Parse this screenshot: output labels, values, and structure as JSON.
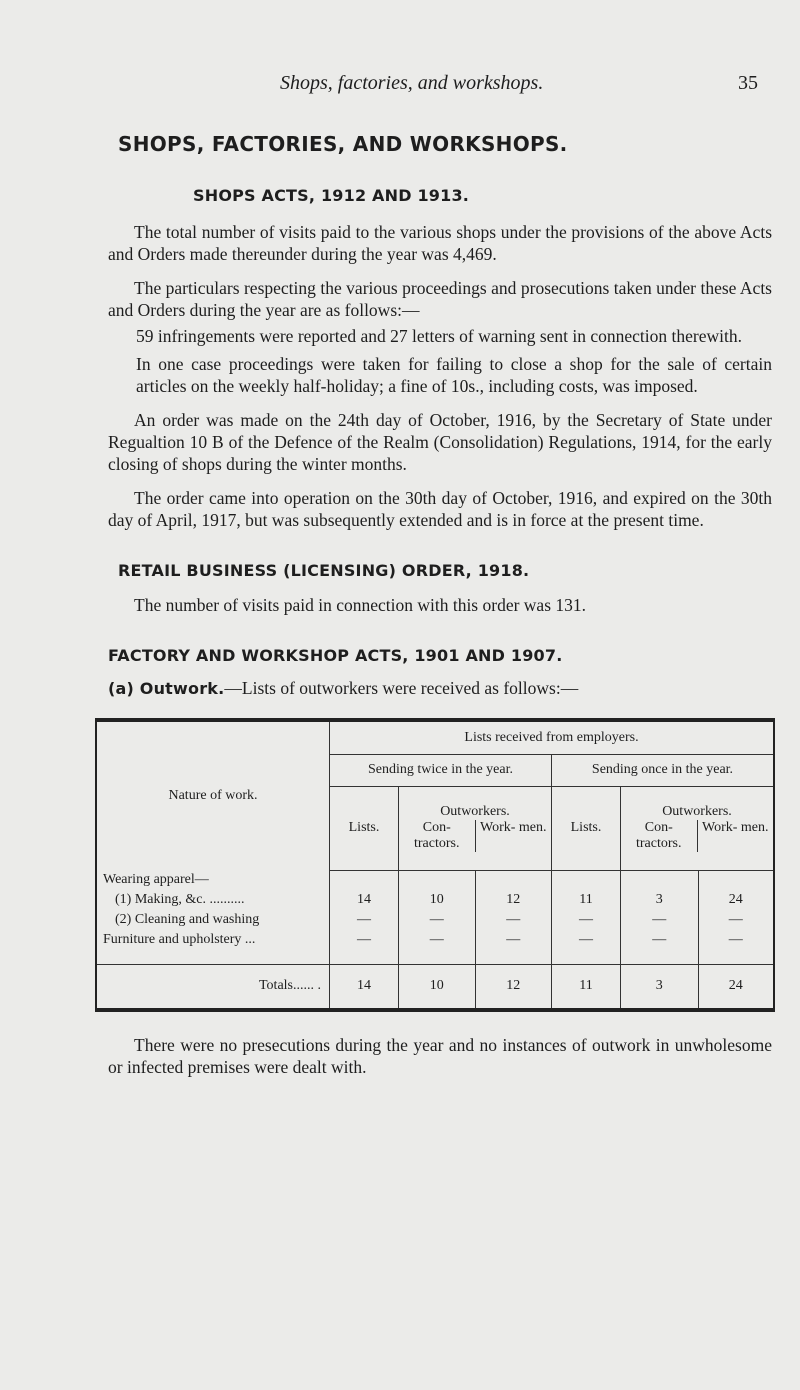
{
  "header": {
    "running_title": "Shops, factories, and workshops.",
    "page_number": "35"
  },
  "title": "SHOPS, FACTORIES, AND WORKSHOPS.",
  "section1": {
    "heading": "SHOPS ACTS, 1912 AND 1913.",
    "p1": "The total number of visits paid to the various shops under the provisions of the above Acts and Orders made thereunder during the year was 4,469.",
    "p2": "The particulars respecting the various proceedings and prosecutions taken under these Acts and Orders during the year are as follows:—",
    "item1": "59 infringements were reported and 27 letters of warning sent in connection therewith.",
    "item2": "In one case proceedings were taken for failing to close a shop for the sale of certain articles on the weekly half-holiday; a fine of 10s., including costs, was imposed.",
    "p3": "An order was made on the 24th day of October, 1916, by the Secretary of State under Regualtion 10 B of the Defence of the Realm (Consolidation) Regulations, 1914, for the early closing of shops during the winter months.",
    "p4": "The order came into operation on the 30th day of October, 1916, and expired on the 30th day of April, 1917, but was subsequently extended and is in force at the present time."
  },
  "section2": {
    "heading": "RETAIL BUSINESS (LICENSING) ORDER, 1918.",
    "p1": "The number of visits paid in connection with this order was 131."
  },
  "section3": {
    "heading": "FACTORY AND WORKSHOP ACTS, 1901 AND 1907.",
    "sub_label": "(a) Outwork.",
    "sub_text": "—Lists of outworkers were received as follows:—",
    "table": {
      "nature_header": "Nature of work.",
      "top_header": "Lists received from employers.",
      "group1": "Sending twice in the year.",
      "group2": "Sending once in the year.",
      "lists": "Lists.",
      "outworkers": "Outworkers.",
      "contractors": "Con- tractors.",
      "workmen": "Work- men.",
      "category": "Wearing apparel—",
      "rows": [
        {
          "label": "(1) Making, &c. ..........",
          "values": [
            "14",
            "10",
            "12",
            "11",
            "3",
            "24"
          ]
        },
        {
          "label": "(2) Cleaning and washing",
          "values": [
            "—",
            "—",
            "—",
            "—",
            "—",
            "—"
          ]
        },
        {
          "label": "Furniture and upholstery ...",
          "values": [
            "—",
            "—",
            "—",
            "—",
            "—",
            "—"
          ]
        }
      ],
      "totals": {
        "label": "Totals...... .",
        "values": [
          "14",
          "10",
          "12",
          "11",
          "3",
          "24"
        ]
      }
    },
    "closing": "There were no presecutions during the year and no instances of outwork in unwholesome or infected premises were dealt with."
  }
}
